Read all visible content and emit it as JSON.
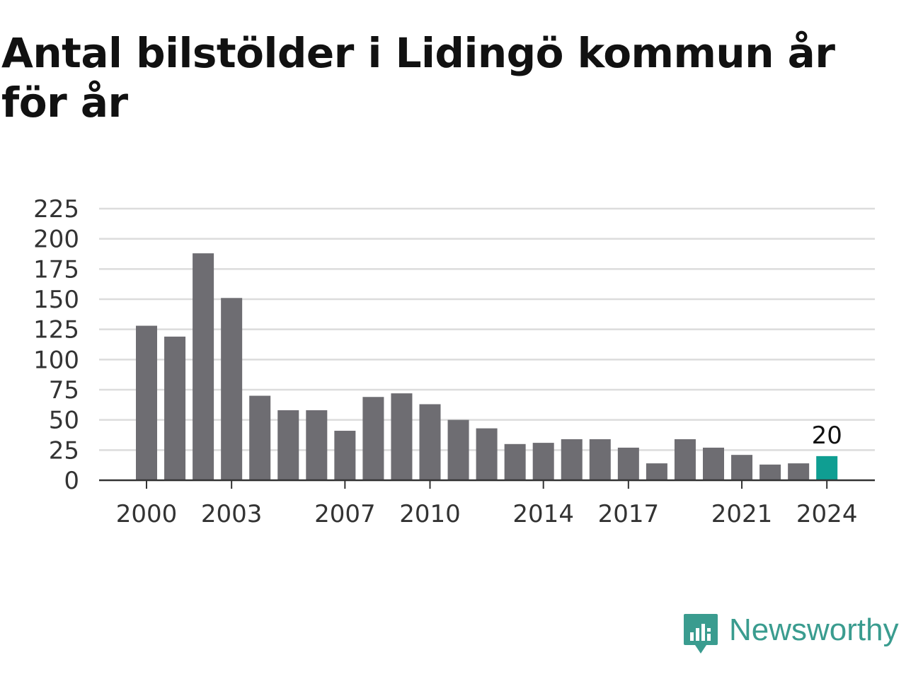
{
  "title": "Antal bilstölder i Lidingö kommun år för år",
  "brand": {
    "name": "Newsworthy",
    "icon": "newsworthy-logo-icon"
  },
  "colors": {
    "bar": "#6e6d72",
    "highlight": "#0f9e92",
    "grid": "#dcdcdc",
    "axis": "#333333",
    "brand": "#3a9c8f"
  },
  "chart_data": {
    "type": "bar",
    "title": "Antal bilstölder i Lidingö kommun år för år",
    "xlabel": "",
    "ylabel": "",
    "categories": [
      "2000",
      "2001",
      "2002",
      "2003",
      "2004",
      "2005",
      "2006",
      "2007",
      "2008",
      "2009",
      "2010",
      "2011",
      "2012",
      "2013",
      "2014",
      "2015",
      "2016",
      "2017",
      "2018",
      "2019",
      "2020",
      "2021",
      "2022",
      "2023",
      "2024"
    ],
    "values": [
      128,
      119,
      188,
      151,
      70,
      58,
      58,
      41,
      69,
      72,
      63,
      50,
      43,
      30,
      31,
      34,
      34,
      27,
      14,
      34,
      27,
      21,
      13,
      14,
      20
    ],
    "highlight_index": 24,
    "data_labels": [
      {
        "index": 24,
        "text": "20"
      }
    ],
    "x_tick_labels": [
      "2000",
      "2003",
      "2007",
      "2010",
      "2014",
      "2017",
      "2021",
      "2024"
    ],
    "y_ticks": [
      0,
      25,
      50,
      75,
      100,
      125,
      150,
      175,
      200,
      225
    ],
    "ylim": [
      0,
      225
    ],
    "grid": true,
    "legend": "none"
  }
}
